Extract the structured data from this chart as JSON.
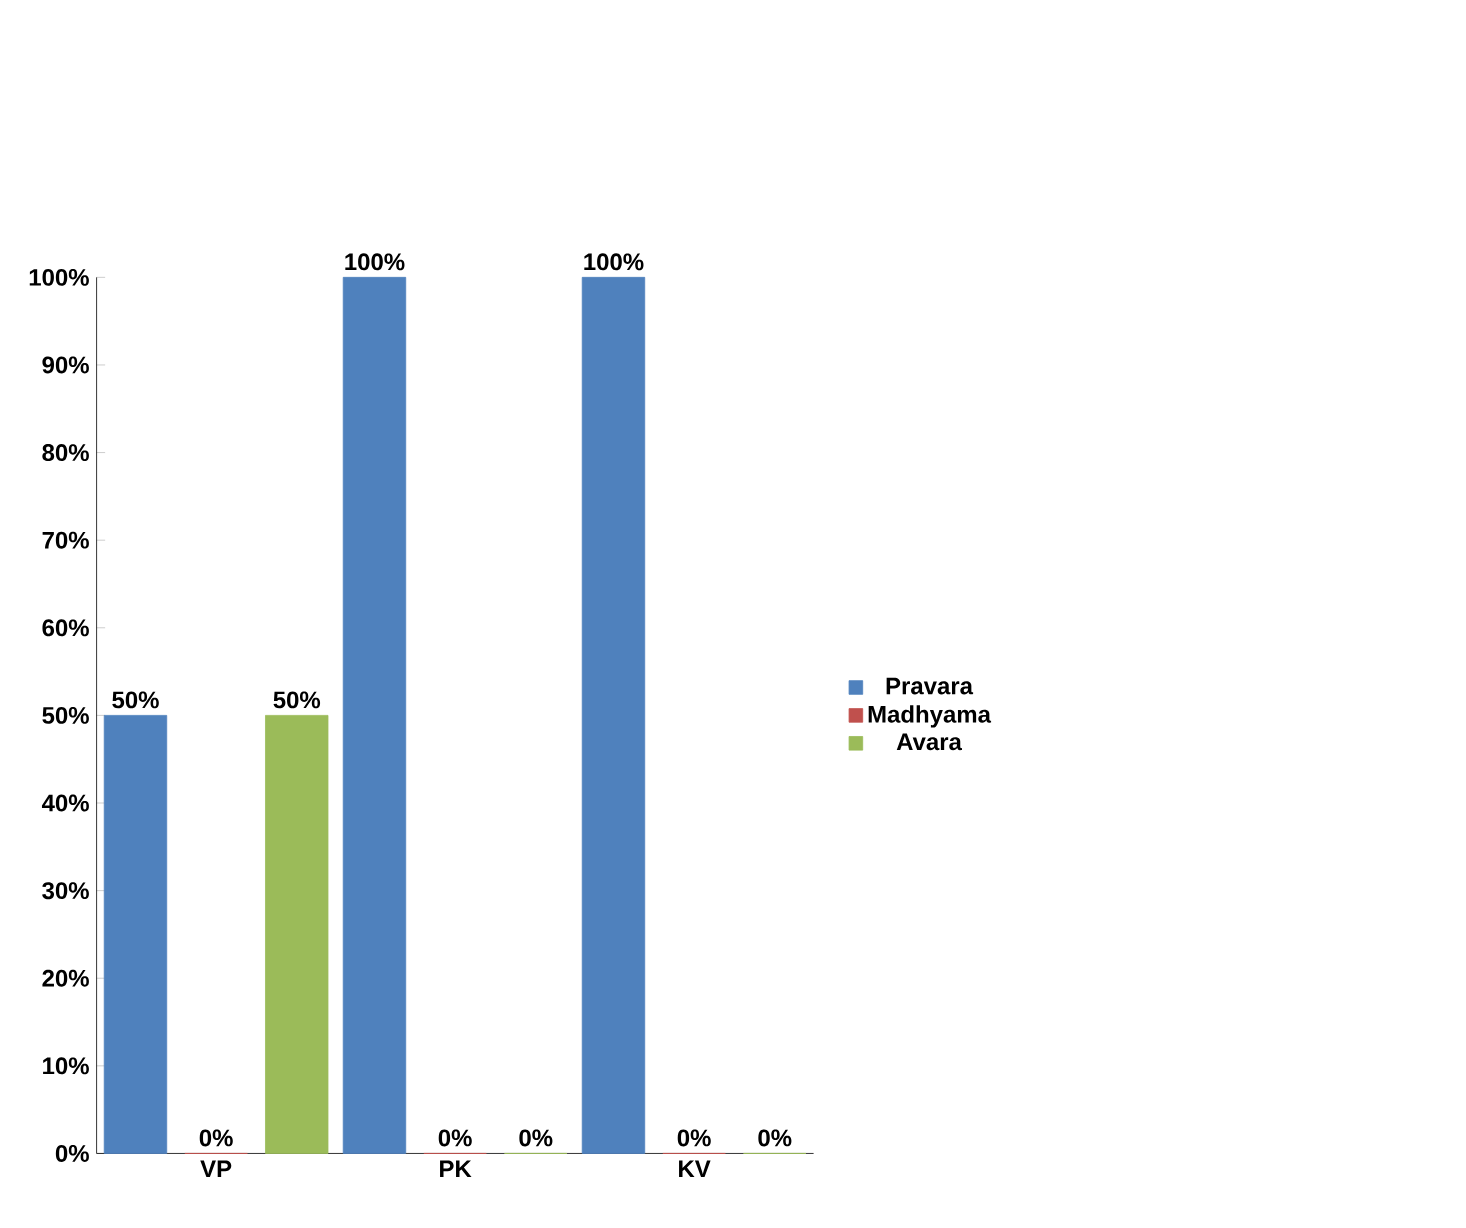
{
  "chart_data": {
    "type": "bar",
    "categories": [
      "VP",
      "PK",
      "KV"
    ],
    "series": [
      {
        "name": "Pravara",
        "color": "#4f81bd",
        "values": [
          50,
          100,
          100
        ],
        "value_labels": [
          "50%",
          "100%",
          "100%"
        ]
      },
      {
        "name": "Madhyama",
        "color": "#c0504d",
        "values": [
          0,
          0,
          0
        ],
        "value_labels": [
          "0%",
          "0%",
          "0%"
        ]
      },
      {
        "name": "Avara",
        "color": "#9bbb59",
        "values": [
          50,
          0,
          0
        ],
        "value_labels": [
          "50%",
          "0%",
          "0%"
        ]
      }
    ],
    "ylim": [
      0,
      100
    ],
    "yticks": [
      {
        "value": 0,
        "label": "0%"
      },
      {
        "value": 10,
        "label": "10%"
      },
      {
        "value": 20,
        "label": "20%"
      },
      {
        "value": 30,
        "label": "30%"
      },
      {
        "value": 40,
        "label": "40%"
      },
      {
        "value": 50,
        "label": "50%"
      },
      {
        "value": 60,
        "label": "60%"
      },
      {
        "value": 70,
        "label": "70%"
      },
      {
        "value": 80,
        "label": "80%"
      },
      {
        "value": 90,
        "label": "90%"
      },
      {
        "value": 100,
        "label": "100%"
      }
    ],
    "grid": false,
    "legend": "right"
  }
}
